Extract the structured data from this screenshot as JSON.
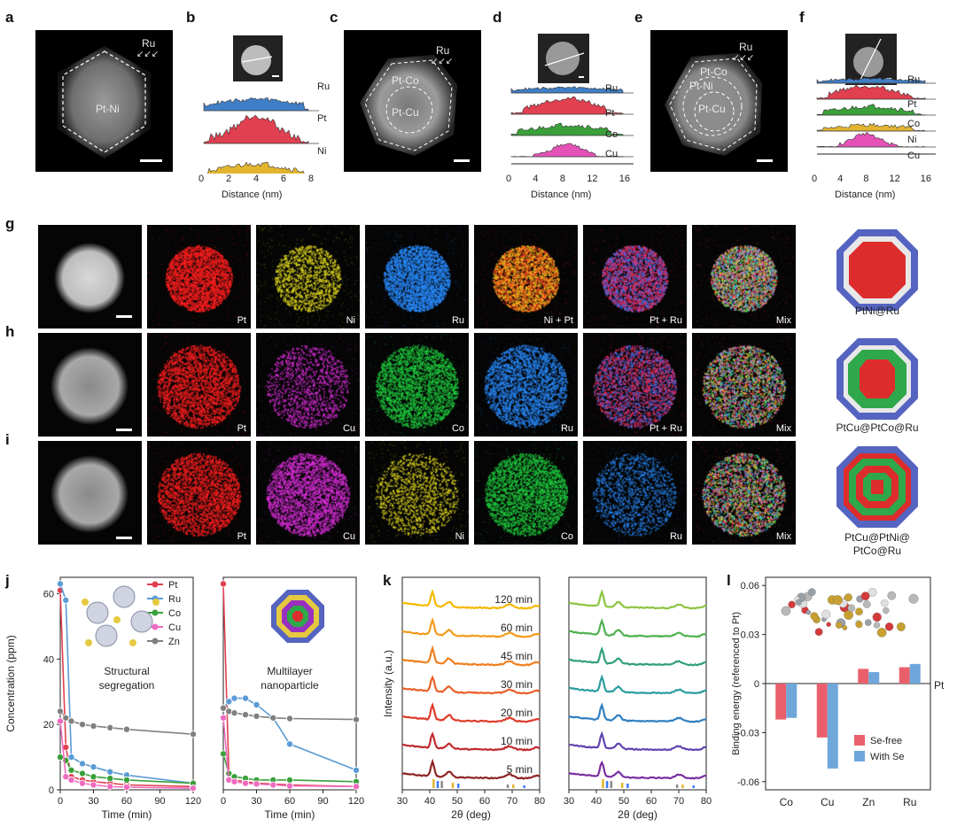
{
  "panels": {
    "a": "a",
    "b": "b",
    "c": "c",
    "d": "d",
    "e": "e",
    "f": "f",
    "g": "g",
    "h": "h",
    "i": "i",
    "j": "j",
    "k": "k",
    "l": "l"
  },
  "stem": {
    "a_core": "Pt-Ni",
    "a_ru": "Ru",
    "c_shell": "Pt-Co",
    "c_core": "Pt-Cu",
    "c_ru": "Ru",
    "e_shell": "Pt-Co",
    "e_mid": "Pt-Ni",
    "e_core": "Pt-Cu",
    "e_ru": "Ru"
  },
  "profiles": {
    "b": {
      "xlabel": "Distance (nm)",
      "ticks": [
        "0",
        "2",
        "4",
        "6",
        "8"
      ],
      "traces": [
        "Ru",
        "Pt",
        "Ni"
      ],
      "colors": [
        "#3f7fc7",
        "#e0404f",
        "#e3b52e"
      ]
    },
    "d": {
      "xlabel": "Distance (nm)",
      "ticks": [
        "0",
        "4",
        "8",
        "12",
        "16"
      ],
      "traces": [
        "Ru",
        "Pt",
        "Co",
        "Cu"
      ],
      "colors": [
        "#3f7fc7",
        "#e0404f",
        "#3aa03a",
        "#e452b8"
      ]
    },
    "f": {
      "xlabel": "Distance (nm)",
      "ticks": [
        "0",
        "4",
        "8",
        "12",
        "16"
      ],
      "traces": [
        "Ru",
        "Pt",
        "Co",
        "Ni",
        "Cu"
      ],
      "colors": [
        "#3f7fc7",
        "#e0404f",
        "#3aa03a",
        "#e3b52e",
        "#e452b8"
      ]
    }
  },
  "maps": {
    "g": [
      "Pt",
      "Ni",
      "Ru",
      "Ni + Pt",
      "Pt + Ru",
      "Mix"
    ],
    "h": [
      "Pt",
      "Cu",
      "Co",
      "Ru",
      "Pt + Ru",
      "Mix"
    ],
    "i": [
      "Pt",
      "Cu",
      "Ni",
      "Co",
      "Ru",
      "Mix"
    ]
  },
  "models": {
    "g": "PtNi@Ru",
    "h": "PtCu@PtCo@Ru",
    "i1": "PtCu@PtNi@",
    "i2": "PtCo@Ru"
  },
  "chart_data": [
    {
      "type": "line",
      "panel": "j-left",
      "title": "Structural segregation",
      "inset_line1": "Structural",
      "inset_line2": "segregation",
      "xlabel": "Time (min)",
      "ylabel": "Concentration (ppm)",
      "xlim": [
        0,
        120
      ],
      "ylim": [
        0,
        65
      ],
      "xticks": [
        "0",
        "30",
        "60",
        "90",
        "120"
      ],
      "yticks": [
        "0",
        "20",
        "40",
        "60"
      ],
      "x": [
        0,
        5,
        10,
        20,
        30,
        45,
        60,
        120
      ],
      "series": [
        {
          "name": "Pt",
          "color": "#e0404f",
          "values": [
            61,
            13,
            4,
            3,
            2.5,
            2,
            1.5,
            1
          ]
        },
        {
          "name": "Ru",
          "color": "#5b9bd5",
          "values": [
            63,
            58,
            10,
            8,
            7,
            5.5,
            4.5,
            2
          ]
        },
        {
          "name": "Co",
          "color": "#3aa03a",
          "values": [
            10,
            9,
            6,
            5,
            4,
            3.5,
            3,
            2
          ]
        },
        {
          "name": "Cu",
          "color": "#f06ac0",
          "values": [
            21,
            4,
            3,
            2,
            1.5,
            1,
            0.8,
            0.5
          ]
        },
        {
          "name": "Zn",
          "color": "#808080",
          "values": [
            24,
            22,
            21,
            20,
            19.5,
            19,
            18.5,
            17
          ]
        }
      ]
    },
    {
      "type": "line",
      "panel": "j-right",
      "title": "Multilayer nanoparticle",
      "inset_line1": "Multilayer",
      "inset_line2": "nanoparticle",
      "xlabel": "Time (min)",
      "xlim": [
        0,
        120
      ],
      "ylim": [
        0,
        65
      ],
      "xticks": [
        "0",
        "30",
        "60",
        "90",
        "120"
      ],
      "x": [
        0,
        5,
        10,
        20,
        30,
        45,
        60,
        120
      ],
      "series": [
        {
          "name": "Pt",
          "color": "#e0404f",
          "values": [
            63,
            5,
            3,
            2.5,
            2,
            1.8,
            1.5,
            1
          ]
        },
        {
          "name": "Ru",
          "color": "#5b9bd5",
          "values": [
            25,
            27,
            28,
            28,
            26,
            22,
            14,
            6
          ]
        },
        {
          "name": "Co",
          "color": "#3aa03a",
          "values": [
            11,
            5,
            4,
            3.5,
            3,
            3,
            3,
            2.5
          ]
        },
        {
          "name": "Cu",
          "color": "#f06ac0",
          "values": [
            22,
            3,
            2.5,
            2,
            1.8,
            1.5,
            1.2,
            1
          ]
        },
        {
          "name": "Zn",
          "color": "#808080",
          "values": [
            25,
            24,
            23.5,
            23,
            22.5,
            22,
            21.8,
            21.5
          ]
        }
      ]
    },
    {
      "type": "line",
      "panel": "k-left",
      "xlabel": "2θ (deg)",
      "ylabel": "Intensity (a.u.)",
      "xlim": [
        30,
        80
      ],
      "xticks": [
        "30",
        "40",
        "50",
        "60",
        "70",
        "80"
      ],
      "series": [
        {
          "name": "120 min",
          "color": "#f5b800"
        },
        {
          "name": "60 min",
          "color": "#f39a1a"
        },
        {
          "name": "45 min",
          "color": "#f07f1f"
        },
        {
          "name": "30 min",
          "color": "#ea5f28"
        },
        {
          "name": "20 min",
          "color": "#de3b2a"
        },
        {
          "name": "10 min",
          "color": "#c02a2e"
        },
        {
          "name": "5 min",
          "color": "#8e2424"
        }
      ]
    },
    {
      "type": "line",
      "panel": "k-right",
      "xlabel": "2θ (deg)",
      "xlim": [
        30,
        80
      ],
      "xticks": [
        "30",
        "40",
        "50",
        "60",
        "70",
        "80"
      ],
      "series": [
        {
          "name": "120 min",
          "color": "#8cc540"
        },
        {
          "name": "60 min",
          "color": "#4fb04f"
        },
        {
          "name": "45 min",
          "color": "#2fa078"
        },
        {
          "name": "30 min",
          "color": "#2a9d9f"
        },
        {
          "name": "20 min",
          "color": "#2f7fc0"
        },
        {
          "name": "10 min",
          "color": "#6244b0"
        },
        {
          "name": "5 min",
          "color": "#7a2fa0"
        }
      ]
    },
    {
      "type": "bar",
      "panel": "l",
      "ylabel": "Binding energy (referenced to Pt)",
      "categories": [
        "Co",
        "Cu",
        "Zn",
        "Ru"
      ],
      "ylim": [
        -0.065,
        0.065
      ],
      "yticks": [
        "0.06",
        "0.03",
        "0",
        "-0.03",
        "-0.06"
      ],
      "reference_label": "Pt",
      "series": [
        {
          "name": "Se-free",
          "color": "#e9606c",
          "values": [
            -0.022,
            -0.033,
            0.009,
            0.01
          ]
        },
        {
          "name": "With Se",
          "color": "#6fa7db",
          "values": [
            -0.021,
            -0.052,
            0.007,
            0.012
          ]
        }
      ]
    }
  ]
}
